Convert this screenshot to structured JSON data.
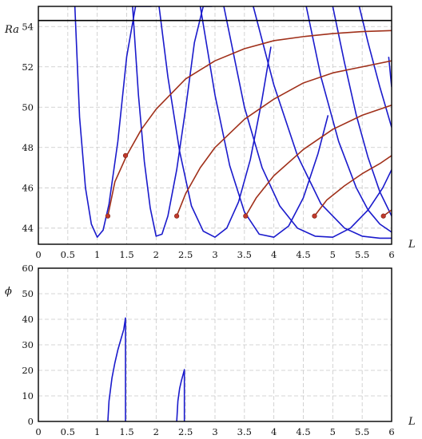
{
  "chart_data": [
    {
      "type": "line",
      "xlabel": "L",
      "ylabel": "Ra",
      "xlim": [
        0,
        6
      ],
      "ylim": [
        43.2,
        55
      ],
      "xticks": [
        "0",
        "0.5",
        "1",
        "1.5",
        "2",
        "2.5",
        "3",
        "3.5",
        "4",
        "4.5",
        "5",
        "5.5",
        "6"
      ],
      "yticks": [
        "44",
        "46",
        "48",
        "50",
        "52",
        "54"
      ],
      "grid": true,
      "colors": {
        "neutral_curves": "#1a1acc",
        "bifurcation_branches": "#a0301a",
        "horizontal_line": "#000000",
        "markers": "#c0392b"
      },
      "horizontal_line": {
        "y": 54.3
      },
      "neutral_curves": [
        {
          "x": [
            0.62,
            0.7,
            0.8,
            0.9,
            1.0,
            1.1,
            1.2,
            1.35,
            1.5,
            1.65,
            1.8,
            1.92
          ],
          "y": [
            55,
            49.5,
            46.0,
            44.2,
            43.55,
            43.9,
            45.2,
            48.3,
            52.5,
            55,
            55,
            55
          ]
        },
        {
          "x": [
            1.6,
            1.7,
            1.8,
            1.9,
            2.0,
            2.1,
            2.2,
            2.35,
            2.5,
            2.65,
            2.8,
            2.95
          ],
          "y": [
            55,
            50.6,
            47.3,
            45.0,
            43.6,
            43.7,
            44.6,
            46.9,
            49.9,
            53.2,
            55,
            55
          ]
        },
        {
          "x": [
            2.05,
            2.2,
            2.4,
            2.6,
            2.8,
            3.0,
            3.2,
            3.4,
            3.6,
            3.8,
            3.95
          ],
          "y": [
            55,
            51.5,
            47.8,
            45.1,
            43.85,
            43.55,
            44.0,
            45.3,
            47.4,
            50.4,
            53.0
          ]
        },
        {
          "x": [
            2.75,
            3.0,
            3.25,
            3.5,
            3.75,
            4.0,
            4.25,
            4.5,
            4.75,
            4.92
          ],
          "y": [
            55,
            50.6,
            47.1,
            44.8,
            43.7,
            43.55,
            44.1,
            45.5,
            47.7,
            49.6
          ]
        },
        {
          "x": [
            3.15,
            3.5,
            3.8,
            4.1,
            4.4,
            4.7,
            5.0,
            5.3,
            5.6,
            5.85,
            6.0
          ],
          "y": [
            55,
            50.0,
            47.0,
            45.1,
            44.0,
            43.6,
            43.55,
            44.0,
            44.9,
            46.0,
            46.9
          ]
        },
        {
          "x": [
            3.65,
            4.0,
            4.4,
            4.8,
            5.2,
            5.5,
            5.8,
            6.0
          ],
          "y": [
            55,
            51.1,
            47.6,
            45.2,
            44.0,
            43.6,
            43.5,
            43.5
          ]
        },
        {
          "x": [
            4.55,
            4.8,
            5.1,
            5.4,
            5.6,
            5.8,
            6.0
          ],
          "y": [
            55,
            51.5,
            48.3,
            46.0,
            44.9,
            44.2,
            43.8
          ]
        },
        {
          "x": [
            5.0,
            5.2,
            5.4,
            5.6,
            5.8,
            6.0
          ],
          "y": [
            55,
            52.2,
            49.6,
            47.5,
            45.8,
            44.6
          ]
        },
        {
          "x": [
            5.45,
            5.6,
            5.8,
            6.0
          ],
          "y": [
            55,
            53.2,
            51.0,
            49.0
          ]
        },
        {
          "x": [
            5.95,
            6.0
          ],
          "y": [
            52.5,
            51.0
          ]
        }
      ],
      "bifurcation_branches": [
        {
          "x": [
            1.18,
            1.3,
            1.5,
            1.75,
            2.0,
            2.5,
            3.0,
            3.5,
            4.0,
            4.5,
            5.0,
            5.5,
            6.0
          ],
          "y": [
            44.6,
            46.3,
            47.6,
            48.9,
            49.9,
            51.4,
            52.3,
            52.9,
            53.3,
            53.5,
            53.65,
            53.75,
            53.8
          ]
        },
        {
          "x": [
            2.35,
            2.5,
            2.75,
            3.0,
            3.5,
            4.0,
            4.5,
            5.0,
            5.5,
            6.0
          ],
          "y": [
            44.6,
            45.7,
            47.0,
            48.0,
            49.4,
            50.4,
            51.2,
            51.7,
            52.0,
            52.3
          ]
        },
        {
          "x": [
            3.52,
            3.7,
            4.0,
            4.5,
            5.0,
            5.5,
            6.0
          ],
          "y": [
            44.6,
            45.5,
            46.6,
            47.9,
            48.9,
            49.6,
            50.1
          ]
        },
        {
          "x": [
            4.69,
            4.9,
            5.2,
            5.5,
            5.8,
            6.0
          ],
          "y": [
            44.6,
            45.4,
            46.1,
            46.7,
            47.2,
            47.6
          ]
        },
        {
          "x": [
            5.86,
            6.0
          ],
          "y": [
            44.6,
            44.9
          ]
        }
      ],
      "markers": [
        {
          "x": 1.18,
          "y": 44.6
        },
        {
          "x": 1.48,
          "y": 47.6
        },
        {
          "x": 2.35,
          "y": 44.6
        },
        {
          "x": 3.52,
          "y": 44.6
        },
        {
          "x": 4.69,
          "y": 44.6
        },
        {
          "x": 5.86,
          "y": 44.6
        }
      ]
    },
    {
      "type": "line",
      "xlabel": "L",
      "ylabel": "ϕ",
      "xlim": [
        0,
        6
      ],
      "ylim": [
        0,
        60
      ],
      "xticks": [
        "0",
        "0.5",
        "1",
        "1.5",
        "2",
        "2.5",
        "3",
        "3.5",
        "4",
        "4.5",
        "5",
        "5.5",
        "6"
      ],
      "yticks": [
        "0",
        "10",
        "20",
        "30",
        "40",
        "50",
        "60"
      ],
      "grid": true,
      "colors": {
        "curves": "#1a1acc"
      },
      "curves": [
        {
          "x": [
            1.18,
            1.2,
            1.25,
            1.3,
            1.35,
            1.4,
            1.45,
            1.48,
            1.48
          ],
          "y": [
            0,
            8,
            17,
            23,
            28,
            32,
            36,
            40.5,
            0
          ]
        },
        {
          "x": [
            2.35,
            2.37,
            2.4,
            2.43,
            2.46,
            2.48,
            2.48
          ],
          "y": [
            0,
            8,
            13,
            16,
            18.5,
            20.3,
            0
          ]
        }
      ]
    }
  ]
}
